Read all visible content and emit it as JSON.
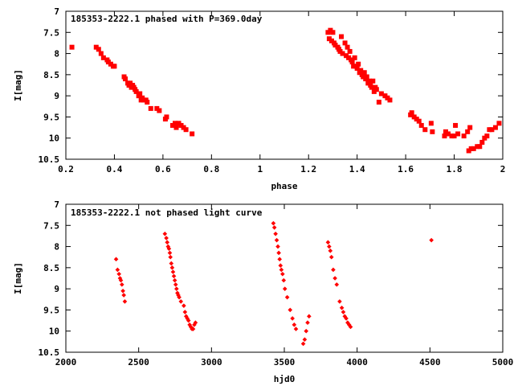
{
  "chart_data": [
    {
      "type": "scatter",
      "title": "185353-2222.1 phased with P=369.0day",
      "xlabel": "phase",
      "ylabel": "I[mag]",
      "xlim": [
        0.2,
        2.0
      ],
      "ylim": [
        7.0,
        10.5
      ],
      "y_inverted": true,
      "xticks": [
        "0.2",
        "0.4",
        "0.6",
        "0.8",
        "1",
        "1.2",
        "1.4",
        "1.6",
        "1.8",
        "2"
      ],
      "yticks": [
        "7",
        "7.5",
        "8",
        "8.5",
        "9",
        "9.5",
        "10",
        "10.5"
      ],
      "marker": "filled-square",
      "marker_color": "#ff0000",
      "grid": false,
      "series": [
        {
          "x": [
            0.225,
            0.325,
            0.335,
            0.345,
            0.355,
            0.37,
            0.375,
            0.385,
            0.395,
            0.4,
            0.44,
            0.445,
            0.455,
            0.46,
            0.465,
            0.47,
            0.475,
            0.48,
            0.485,
            0.49,
            0.5,
            0.505,
            0.51,
            0.515,
            0.52,
            0.53,
            0.535,
            0.55,
            0.575,
            0.585,
            0.61,
            0.615,
            0.64,
            0.65,
            0.655,
            0.665,
            0.675,
            0.685,
            0.695,
            0.72,
            1.28,
            1.285,
            1.29,
            1.295,
            1.3,
            1.305,
            1.31,
            1.32,
            1.325,
            1.33,
            1.335,
            1.34,
            1.35,
            1.355,
            1.36,
            1.365,
            1.37,
            1.375,
            1.38,
            1.385,
            1.39,
            1.395,
            1.4,
            1.405,
            1.41,
            1.415,
            1.42,
            1.425,
            1.43,
            1.435,
            1.44,
            1.445,
            1.45,
            1.455,
            1.46,
            1.465,
            1.47,
            1.475,
            1.48,
            1.49,
            1.5,
            1.515,
            1.525,
            1.535,
            1.62,
            1.625,
            1.635,
            1.645,
            1.655,
            1.665,
            1.68,
            1.705,
            1.71,
            1.76,
            1.765,
            1.775,
            1.79,
            1.8,
            1.805,
            1.815,
            1.84,
            1.855,
            1.86,
            1.865,
            1.87,
            1.88,
            1.895,
            1.905,
            1.915,
            1.925,
            1.935,
            1.945,
            1.955,
            1.97,
            1.985
          ],
          "y": [
            7.85,
            7.85,
            7.9,
            8.0,
            8.1,
            8.15,
            8.2,
            8.25,
            8.3,
            8.3,
            8.55,
            8.6,
            8.7,
            8.75,
            8.7,
            8.8,
            8.75,
            8.8,
            8.85,
            8.9,
            9.0,
            8.95,
            9.1,
            9.05,
            9.1,
            9.1,
            9.15,
            9.3,
            9.3,
            9.35,
            9.55,
            9.5,
            9.7,
            9.65,
            9.75,
            9.65,
            9.7,
            9.75,
            9.8,
            9.9,
            7.5,
            7.65,
            7.45,
            7.7,
            7.5,
            7.75,
            7.8,
            7.85,
            7.9,
            7.95,
            7.6,
            8.0,
            7.75,
            8.05,
            7.85,
            8.1,
            7.95,
            8.15,
            8.2,
            8.3,
            8.1,
            8.3,
            8.35,
            8.25,
            8.45,
            8.4,
            8.5,
            8.55,
            8.45,
            8.6,
            8.55,
            8.7,
            8.65,
            8.75,
            8.8,
            8.65,
            8.9,
            8.8,
            8.85,
            9.15,
            8.95,
            9.0,
            9.05,
            9.1,
            9.45,
            9.4,
            9.5,
            9.55,
            9.6,
            9.7,
            9.8,
            9.65,
            9.85,
            9.95,
            9.85,
            9.9,
            9.95,
            9.95,
            9.7,
            9.9,
            9.95,
            9.85,
            10.3,
            9.75,
            10.25,
            10.25,
            10.2,
            10.2,
            10.1,
            10.0,
            9.95,
            9.8,
            9.8,
            9.75,
            9.65
          ]
        }
      ]
    },
    {
      "type": "scatter",
      "title": "185353-2222.1 not phased light curve",
      "xlabel": "hjd0",
      "ylabel": "I[mag]",
      "xlim": [
        2000,
        5000
      ],
      "ylim": [
        7.0,
        10.5
      ],
      "y_inverted": true,
      "xticks": [
        "2000",
        "2500",
        "3000",
        "3500",
        "4000",
        "4500",
        "5000"
      ],
      "yticks": [
        "7",
        "7.5",
        "8",
        "8.5",
        "9",
        "9.5",
        "10",
        "10.5"
      ],
      "marker": "filled-diamond",
      "marker_color": "#ff0000",
      "grid": false,
      "series": [
        {
          "x": [
            2345,
            2355,
            2365,
            2372,
            2378,
            2385,
            2392,
            2398,
            2405,
            2680,
            2690,
            2696,
            2702,
            2708,
            2714,
            2718,
            2724,
            2730,
            2736,
            2742,
            2748,
            2754,
            2760,
            2766,
            2772,
            2778,
            2790,
            2810,
            2818,
            2826,
            2834,
            2842,
            2850,
            2858,
            2866,
            2874,
            2882,
            2890,
            3425,
            3432,
            3440,
            3448,
            3456,
            3462,
            3468,
            3474,
            3480,
            3488,
            3496,
            3504,
            3520,
            3540,
            3556,
            3568,
            3580,
            3630,
            3640,
            3650,
            3660,
            3670,
            3800,
            3808,
            3816,
            3824,
            3836,
            3848,
            3860,
            3880,
            3895,
            3905,
            3915,
            3925,
            3935,
            3945,
            3955,
            4510
          ],
          "y": [
            8.3,
            8.55,
            8.65,
            8.75,
            8.8,
            8.9,
            9.05,
            9.15,
            9.3,
            7.7,
            7.8,
            7.9,
            8.0,
            8.05,
            8.15,
            8.25,
            8.4,
            8.5,
            8.6,
            8.7,
            8.8,
            8.9,
            9.0,
            9.1,
            9.15,
            9.2,
            9.3,
            9.4,
            9.55,
            9.65,
            9.7,
            9.75,
            9.85,
            9.9,
            9.95,
            9.95,
            9.85,
            9.8,
            7.45,
            7.55,
            7.7,
            7.85,
            8.0,
            8.15,
            8.3,
            8.45,
            8.55,
            8.65,
            8.8,
            9.0,
            9.2,
            9.5,
            9.7,
            9.85,
            9.95,
            10.3,
            10.2,
            10.0,
            9.8,
            9.65,
            7.9,
            8.0,
            8.1,
            8.25,
            8.55,
            8.75,
            8.9,
            9.3,
            9.45,
            9.55,
            9.65,
            9.7,
            9.8,
            9.85,
            9.9,
            7.85
          ]
        }
      ]
    }
  ]
}
